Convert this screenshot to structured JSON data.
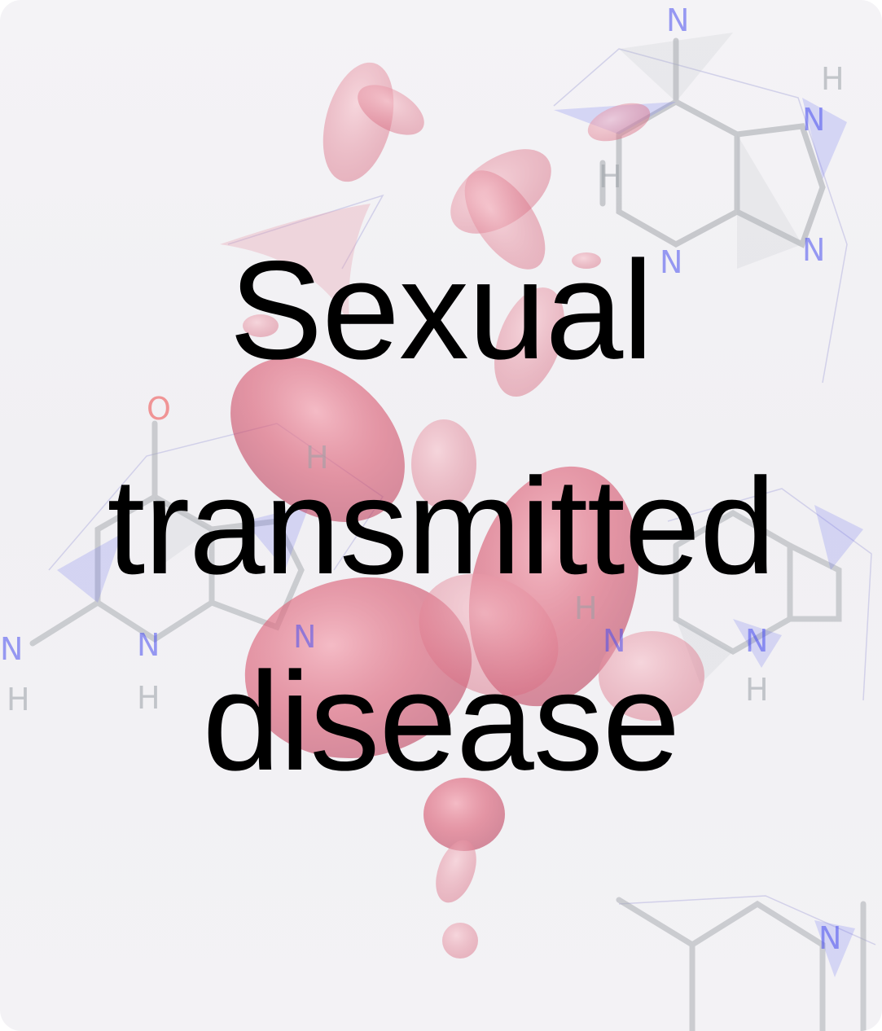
{
  "title": {
    "lines": [
      "Sexual",
      "transmitted",
      "disease"
    ]
  },
  "background": {
    "illustration": "blood-cells-and-molecular-structure",
    "atom_labels": [
      "H",
      "N",
      "N",
      "H",
      "N",
      "N",
      "O",
      "H",
      "N",
      "N",
      "N",
      "H",
      "H",
      "N",
      "N",
      "H",
      "N",
      "H"
    ],
    "colors": {
      "card": "#f3f2f5",
      "blood_cell": "#d9566e",
      "bond_gray": "#9aa0a6",
      "nitrogen_blue": "#4a4ff0",
      "oxygen_red": "#f04a4a",
      "text": "#000000"
    }
  }
}
